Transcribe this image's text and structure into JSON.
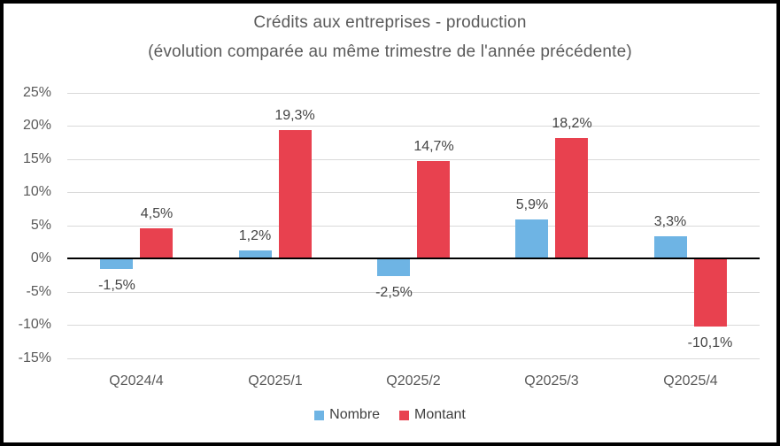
{
  "chart_data": {
    "type": "bar",
    "title": "Crédits aux entreprises - production",
    "subtitle": "(évolution comparée au même trimestre de l'année précédente)",
    "categories": [
      "Q2024/4",
      "Q2025/1",
      "Q2025/2",
      "Q2025/3",
      "Q2025/4"
    ],
    "series": [
      {
        "name": "Nombre",
        "color": "#6EB4E4",
        "values": [
          -1.5,
          1.2,
          -2.5,
          5.9,
          3.3
        ],
        "labels": [
          "-1,5%",
          "1,2%",
          "-2,5%",
          "5,9%",
          "3,3%"
        ]
      },
      {
        "name": "Montant",
        "color": "#E8414F",
        "values": [
          4.5,
          19.3,
          14.7,
          18.2,
          -10.1
        ],
        "labels": [
          "4,5%",
          "19,3%",
          "14,7%",
          "18,2%",
          "-10,1%"
        ]
      }
    ],
    "ylim": [
      -15,
      25
    ],
    "ytick_step": 5,
    "ytick_labels": [
      "25%",
      "20%",
      "15%",
      "10%",
      "5%",
      "0%",
      "-5%",
      "-10%",
      "-15%"
    ],
    "grid": true,
    "legend_position": "bottom",
    "colors": {
      "gridline": "#d9d9d9",
      "axis": "#000000",
      "tick_text": "#595959",
      "label_text": "#444444",
      "title_text": "#5a5a5a"
    }
  }
}
